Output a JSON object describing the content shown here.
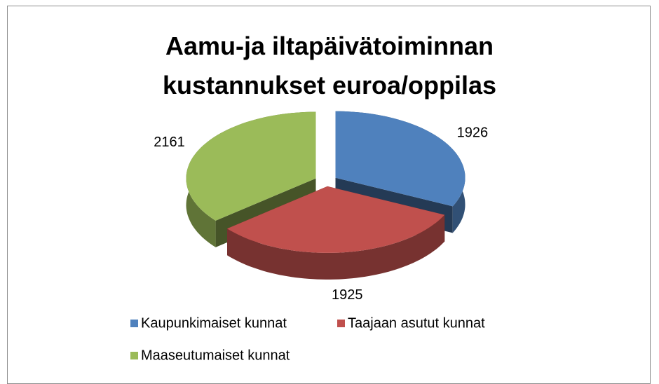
{
  "chart_data": {
    "type": "pie3d",
    "title": "Aamu-ja iltapäivätoiminnan kustannukset euroa/oppilas",
    "categories": [
      "Kaupunkimaiset kunnat",
      "Taajaan asutut kunnat",
      "Maaseutumaiset kunnat"
    ],
    "values": [
      1926,
      1925,
      2161
    ],
    "colors": [
      "#4f81bd",
      "#c0504d",
      "#9bbb59"
    ],
    "legend": "bottom"
  }
}
